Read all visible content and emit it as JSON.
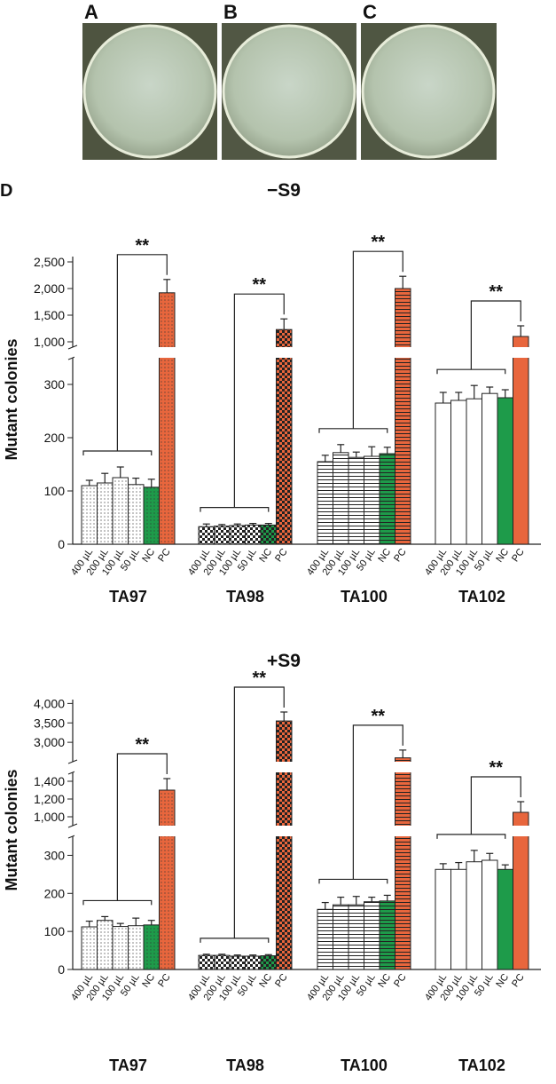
{
  "photos": {
    "labels": [
      "A",
      "B",
      "C"
    ]
  },
  "panel_label": "D",
  "chart_data": [
    {
      "type": "bar",
      "title": "−S9",
      "ylabel": "Mutant colonies",
      "categories": [
        "400 µL",
        "200 µL",
        "100 µL",
        "50 µL",
        "NC",
        "PC"
      ],
      "colors": [
        "#ffffff",
        "#ffffff",
        "#ffffff",
        "#ffffff",
        "#1e9b4a",
        "#e8663d"
      ],
      "ylim": [
        0,
        2600
      ],
      "y_breaks": [
        [
          350,
          900
        ]
      ],
      "yticks": [
        0,
        100,
        200,
        300,
        {
          "value": 1000,
          "label": "1,000"
        },
        {
          "value": 1500,
          "label": "1,500"
        },
        {
          "value": 2000,
          "label": "2,000"
        },
        {
          "value": 2500,
          "label": "2,500"
        }
      ],
      "groups": [
        {
          "name": "TA97",
          "pattern": "dots",
          "values": [
            110,
            115,
            125,
            112,
            107,
            1920
          ],
          "errors": [
            10,
            18,
            20,
            12,
            15,
            250
          ],
          "significance": "**"
        },
        {
          "name": "TA98",
          "pattern": "checker",
          "values": [
            33,
            34,
            35,
            36,
            36,
            1230
          ],
          "errors": [
            5,
            3,
            3,
            3,
            3,
            200
          ],
          "significance": "**"
        },
        {
          "name": "TA100",
          "pattern": "hlines",
          "values": [
            155,
            172,
            163,
            165,
            170,
            2000
          ],
          "errors": [
            12,
            15,
            10,
            18,
            12,
            230
          ],
          "significance": "**"
        },
        {
          "name": "TA102",
          "pattern": "none",
          "values": [
            265,
            270,
            273,
            283,
            275,
            1100
          ],
          "errors": [
            20,
            15,
            25,
            12,
            15,
            200
          ],
          "significance": "**"
        }
      ]
    },
    {
      "type": "bar",
      "title": "+S9",
      "ylabel": "Mutant colonies",
      "categories": [
        "400 µL",
        "200 µL",
        "100 µL",
        "50 µL",
        "NC",
        "PC"
      ],
      "colors": [
        "#ffffff",
        "#ffffff",
        "#ffffff",
        "#ffffff",
        "#1e9b4a",
        "#e8663d"
      ],
      "ylim": [
        0,
        4100
      ],
      "y_breaks": [
        [
          350,
          900
        ],
        [
          1500,
          2500
        ]
      ],
      "yticks": [
        0,
        100,
        200,
        300,
        {
          "value": 1000,
          "label": "1,000"
        },
        {
          "value": 1200,
          "label": "1,200"
        },
        {
          "value": 1400,
          "label": "1,400"
        },
        {
          "value": 3000,
          "label": "3,000"
        },
        {
          "value": 3500,
          "label": "3,500"
        },
        {
          "value": 4000,
          "label": "4,000"
        }
      ],
      "groups": [
        {
          "name": "TA97",
          "pattern": "dots",
          "values": [
            112,
            129,
            113,
            115,
            117,
            1300
          ],
          "errors": [
            15,
            10,
            8,
            20,
            12,
            130
          ],
          "significance": "**"
        },
        {
          "name": "TA98",
          "pattern": "checker",
          "values": [
            37,
            37,
            35,
            35,
            36,
            3550
          ],
          "errors": [
            3,
            3,
            3,
            3,
            3,
            230
          ],
          "significance": "**"
        },
        {
          "name": "TA100",
          "pattern": "hlines",
          "values": [
            158,
            170,
            170,
            178,
            180,
            2600
          ],
          "errors": [
            18,
            20,
            22,
            12,
            15,
            200
          ],
          "significance": "**"
        },
        {
          "name": "TA102",
          "pattern": "none",
          "values": [
            263,
            263,
            283,
            287,
            263,
            1050
          ],
          "errors": [
            15,
            18,
            30,
            18,
            12,
            120
          ],
          "significance": "**"
        }
      ]
    }
  ]
}
